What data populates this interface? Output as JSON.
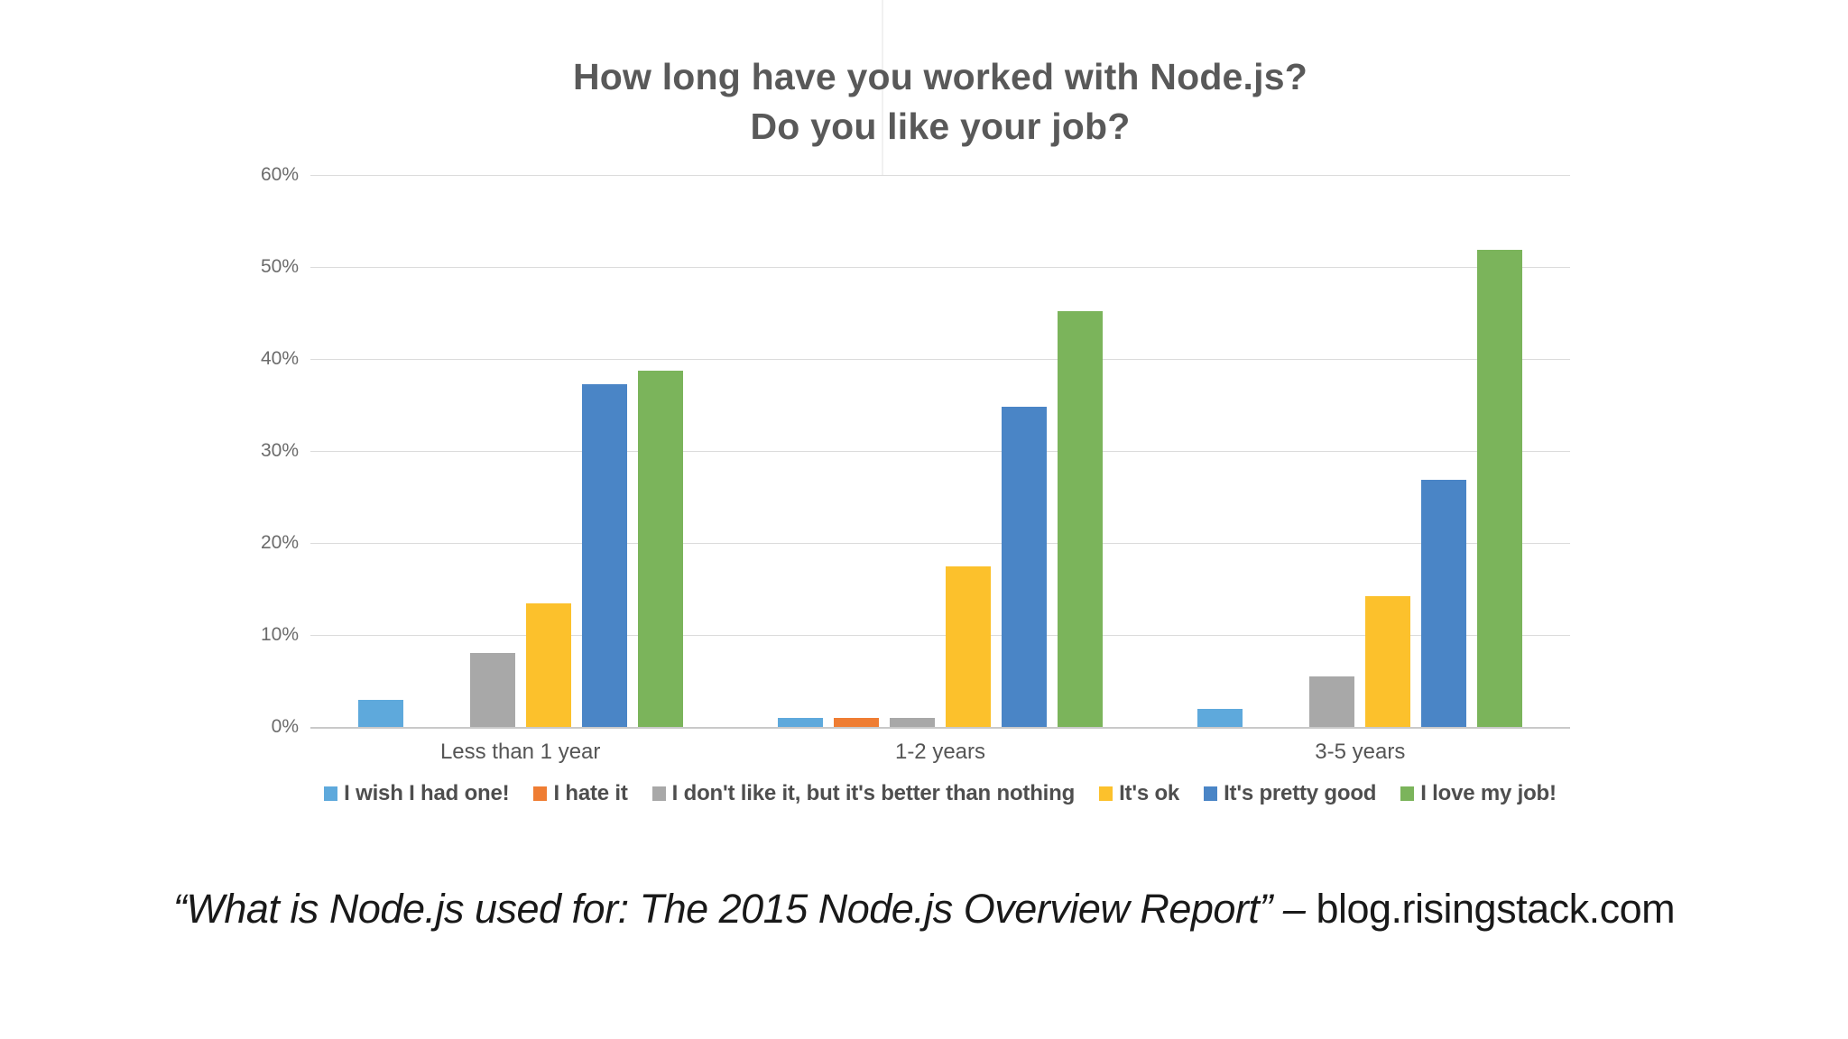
{
  "title": {
    "line1": "How long have you worked with Node.js?",
    "line2": "Do you like your job?"
  },
  "chart_data": {
    "type": "bar",
    "title": "How long have you worked with Node.js? Do you like your job?",
    "categories": [
      "Less than 1 year",
      "1-2 years",
      "3-5 years"
    ],
    "series": [
      {
        "name": "I wish I had one!",
        "color": "#5EA9DC",
        "values": [
          2.9,
          1.0,
          2.0
        ]
      },
      {
        "name": "I hate it",
        "color": "#EF7D33",
        "values": [
          0,
          1.0,
          0
        ]
      },
      {
        "name": "I don't like it, but it's better than nothing",
        "color": "#A8A8A8",
        "values": [
          8.0,
          1.0,
          5.5
        ]
      },
      {
        "name": "It's ok",
        "color": "#FCC12C",
        "values": [
          13.4,
          17.5,
          14.2
        ]
      },
      {
        "name": "It's pretty good",
        "color": "#4A85C6",
        "values": [
          37.3,
          34.8,
          26.9
        ]
      },
      {
        "name": "I love my job!",
        "color": "#7BB45B",
        "values": [
          38.7,
          45.2,
          51.9
        ]
      }
    ],
    "xlabel": "",
    "ylabel": "",
    "ylim": [
      0,
      60
    ],
    "y_ticks": [
      "60%",
      "50%",
      "40%",
      "30%",
      "20%",
      "10%",
      "0%"
    ],
    "grid": true,
    "legend_position": "bottom"
  },
  "caption": {
    "quote": "“What is Node.js used for: The 2015 Node.js Overview Report”",
    "dash": " – ",
    "source": "blog.risingstack.com"
  },
  "colors": {
    "title_text": "#595959",
    "tick_text": "#6b6b6b",
    "gridline": "#dbdbdb",
    "baseline": "#c9c9c9",
    "caption_text": "#191919"
  }
}
